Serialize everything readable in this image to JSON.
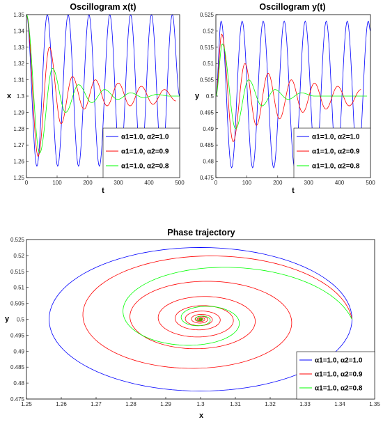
{
  "chart_data": [
    {
      "type": "line",
      "title": "Oscillogram x(t)",
      "xlabel": "t",
      "ylabel": "x",
      "xlim": [
        0,
        500
      ],
      "ylim": [
        1.25,
        1.35
      ],
      "xticks": [
        "0",
        "100",
        "200",
        "300",
        "400",
        "500"
      ],
      "yticks": [
        "1.25",
        "1.26",
        "1.27",
        "1.28",
        "1.29",
        "1.3",
        "1.31",
        "1.32",
        "1.33",
        "1.34",
        "1.35"
      ],
      "legend_position": "bottom-right",
      "series": [
        {
          "name": "α1=1.0, α2=1.0",
          "color": "#0000ff",
          "model": {
            "center": 1.3,
            "amplitude": 0.05,
            "period": 68,
            "phase": 0,
            "decay": 0,
            "start": 1.35
          },
          "x": [
            0,
            34,
            68,
            102,
            136,
            170,
            204,
            238,
            272,
            306,
            340,
            374,
            408,
            442,
            476,
            500
          ],
          "values": [
            1.35,
            1.257,
            1.35,
            1.257,
            1.35,
            1.257,
            1.35,
            1.257,
            1.35,
            1.257,
            1.35,
            1.257,
            1.35,
            1.257,
            1.35,
            1.3
          ]
        },
        {
          "name": "α1=1.0, α2=0.9",
          "color": "#ff0000",
          "model": {
            "center": 1.3,
            "amplitude": 0.05,
            "period": 75,
            "decay": 0.0075,
            "start": 1.35
          },
          "x": [
            0,
            38,
            75,
            113,
            150,
            188,
            225,
            263,
            300,
            338,
            375,
            413,
            450,
            488
          ],
          "values": [
            1.35,
            1.263,
            1.33,
            1.283,
            1.312,
            1.292,
            1.31,
            1.294,
            1.308,
            1.294,
            1.306,
            1.295,
            1.304,
            1.297
          ]
        },
        {
          "name": "α1=1.0, α2=0.8",
          "color": "#00ff00",
          "model": {
            "center": 1.3,
            "amplitude": 0.05,
            "period": 85,
            "decay": 0.016,
            "start": 1.35
          },
          "x": [
            0,
            43,
            85,
            128,
            170,
            213,
            255,
            298,
            340,
            383,
            425,
            468,
            500
          ],
          "values": [
            1.35,
            1.265,
            1.317,
            1.29,
            1.307,
            1.296,
            1.304,
            1.298,
            1.302,
            1.299,
            1.301,
            1.3,
            1.3
          ]
        }
      ]
    },
    {
      "type": "line",
      "title": "Oscillogram y(t)",
      "xlabel": "t",
      "ylabel": "y",
      "xlim": [
        0,
        500
      ],
      "ylim": [
        0.475,
        0.525
      ],
      "xticks": [
        "0",
        "100",
        "200",
        "300",
        "400",
        "500"
      ],
      "yticks": [
        "0.475",
        "0.48",
        "0.485",
        "0.49",
        "0.495",
        "0.5",
        "0.505",
        "0.51",
        "0.515",
        "0.52",
        "0.525"
      ],
      "legend_position": "bottom-right",
      "series": [
        {
          "name": "α1=1.0, α2=1.0",
          "color": "#0000ff",
          "x": [
            0,
            17,
            51,
            85,
            119,
            153,
            187,
            221,
            255,
            289,
            323,
            357,
            391,
            425,
            459,
            493,
            500
          ],
          "values": [
            0.5,
            0.523,
            0.478,
            0.523,
            0.478,
            0.523,
            0.478,
            0.523,
            0.478,
            0.523,
            0.478,
            0.523,
            0.478,
            0.523,
            0.478,
            0.523,
            0.52
          ]
        },
        {
          "name": "α1=1.0, α2=0.9",
          "color": "#ff0000",
          "x": [
            0,
            19,
            56,
            94,
            131,
            169,
            206,
            244,
            281,
            319,
            356,
            394,
            431,
            469
          ],
          "values": [
            0.5,
            0.519,
            0.486,
            0.51,
            0.491,
            0.507,
            0.493,
            0.505,
            0.495,
            0.504,
            0.496,
            0.503,
            0.497,
            0.502
          ]
        },
        {
          "name": "α1=1.0, α2=0.8",
          "color": "#00ff00",
          "x": [
            0,
            21,
            64,
            106,
            149,
            191,
            234,
            276,
            319,
            361,
            404,
            446,
            489
          ],
          "values": [
            0.5,
            0.516,
            0.49,
            0.505,
            0.497,
            0.502,
            0.499,
            0.501,
            0.5,
            0.5,
            0.5,
            0.5,
            0.5
          ]
        }
      ]
    },
    {
      "type": "line",
      "title": "Phase trajectory",
      "xlabel": "x",
      "ylabel": "y",
      "xlim": [
        1.25,
        1.35
      ],
      "ylim": [
        0.475,
        0.525
      ],
      "xticks": [
        "1.25",
        "1.26",
        "1.27",
        "1.28",
        "1.29",
        "1.3",
        "1.31",
        "1.32",
        "1.33",
        "1.34",
        "1.35"
      ],
      "yticks": [
        "0.475",
        "0.48",
        "0.485",
        "0.49",
        "0.495",
        "0.5",
        "0.505",
        "0.51",
        "0.515",
        "0.52",
        "0.525"
      ],
      "legend_position": "bottom-right",
      "series": [
        {
          "name": "α1=1.0, α2=1.0",
          "color": "#0000ff",
          "center": [
            1.3,
            0.5
          ],
          "x_amplitude": 0.0435,
          "y_amplitude": 0.0225,
          "decay_per_turn": 1.0
        },
        {
          "name": "α1=1.0, α2=0.9",
          "color": "#ff0000",
          "center": [
            1.3,
            0.5
          ],
          "x_amplitude": 0.0435,
          "y_amplitude": 0.0225,
          "decay_per_turn": 0.6
        },
        {
          "name": "α1=1.0, α2=0.8",
          "color": "#00ff00",
          "center": [
            1.3,
            0.5
          ],
          "x_amplitude": 0.0435,
          "y_amplitude": 0.0225,
          "decay_per_turn": 0.25
        }
      ]
    }
  ]
}
